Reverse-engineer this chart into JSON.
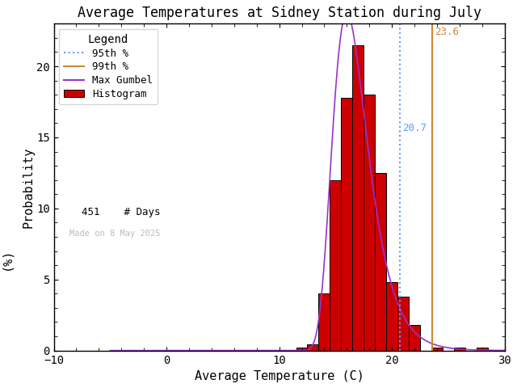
{
  "title": "Average Temperatures at Sidney Station during July",
  "xlabel": "Average Temperature (C)",
  "ylabel_top": "Probability",
  "ylabel_bot": "(%)",
  "xlim": [
    -10,
    30
  ],
  "ylim": [
    0,
    23
  ],
  "bar_centers": [
    11,
    12,
    13,
    14,
    15,
    16,
    17,
    18,
    19,
    20,
    21,
    22,
    23,
    24,
    25,
    26,
    27,
    28
  ],
  "bar_heights": [
    0.0,
    0.22,
    0.44,
    4.0,
    12.0,
    17.8,
    21.5,
    18.0,
    12.5,
    4.8,
    3.8,
    1.8,
    0.0,
    0.22,
    0.0,
    0.22,
    0.0,
    0.22
  ],
  "bar_color": "#cc0000",
  "bar_edgecolor": "#000000",
  "perc95_val": 20.7,
  "perc99_val": 23.6,
  "perc95_color": "#6699ff",
  "perc99_color": "#cc8833",
  "gumbel_color": "#9933cc",
  "gumbel_mu": 16.0,
  "gumbel_beta": 1.55,
  "gumbel_scale": 100.0,
  "n_days": 451,
  "watermark": "Made on 8 May 2025",
  "watermark_color": "#bbbbbb",
  "background_color": "#ffffff",
  "title_fontsize": 12,
  "axis_fontsize": 11,
  "tick_fontsize": 10,
  "legend_fontsize": 9,
  "annot_fontsize": 9
}
